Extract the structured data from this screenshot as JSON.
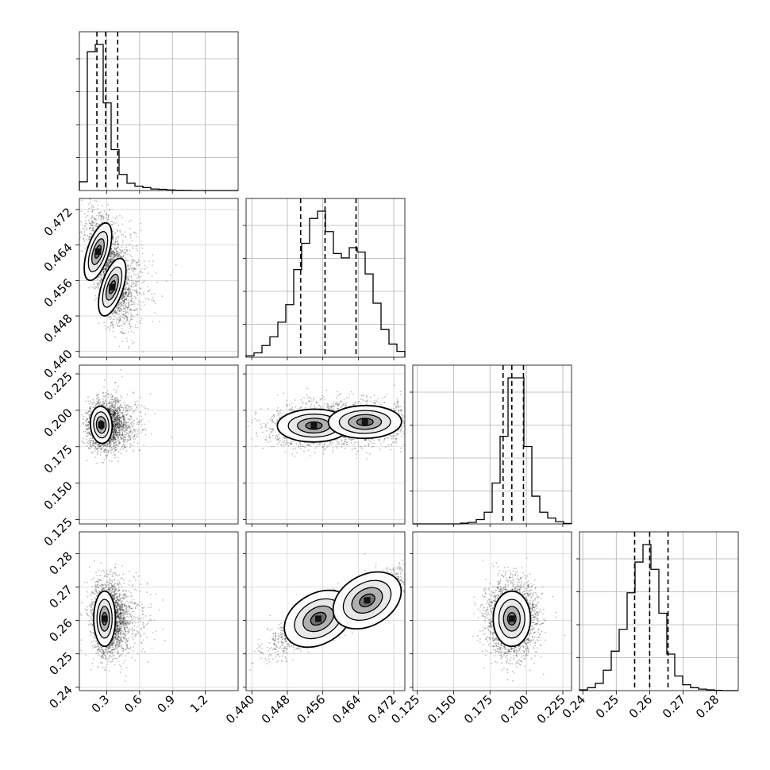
{
  "chart_data": {
    "type": "corner",
    "description_free": true,
    "params": [
      {
        "ticks": [
          "0.3",
          "0.6",
          "0.9",
          "1.2"
        ],
        "tick_values": [
          0.3,
          0.6,
          0.9,
          1.2
        ],
        "range": [
          0.05,
          1.5
        ],
        "center": 0.29,
        "quantiles": [
          0.21,
          0.29,
          0.4
        ]
      },
      {
        "ticks": [
          "0.440",
          "0.448",
          "0.456",
          "0.464",
          "0.472"
        ],
        "tick_values": [
          0.44,
          0.448,
          0.456,
          0.464,
          0.472
        ],
        "range": [
          0.4387,
          0.4745
        ],
        "center": 0.457,
        "quantiles": [
          0.451,
          0.4565,
          0.4635
        ]
      },
      {
        "ticks": [
          "0.125",
          "0.150",
          "0.175",
          "0.200",
          "0.225"
        ],
        "tick_values": [
          0.125,
          0.15,
          0.175,
          0.2,
          0.225
        ],
        "range": [
          0.122,
          0.231
        ],
        "center": 0.19,
        "quantiles": [
          0.184,
          0.19,
          0.198
        ]
      },
      {
        "ticks": [
          "0.24",
          "0.25",
          "0.26",
          "0.27",
          "0.28"
        ],
        "tick_values": [
          0.24,
          0.25,
          0.26,
          0.27,
          0.28
        ],
        "range": [
          0.239,
          0.2865
        ],
        "center": 0.26,
        "quantiles": [
          0.2555,
          0.26,
          0.2655
        ]
      }
    ],
    "histograms": [
      {
        "param": 0,
        "bin_edges_start": 0.05,
        "bin_width": 0.0725,
        "counts": [
          0.06,
          0.95,
          1.0,
          0.6,
          0.28,
          0.11,
          0.05,
          0.03,
          0.02,
          0.01,
          0.008,
          0.004,
          0.002,
          0.001,
          0,
          0,
          0,
          0,
          0,
          0
        ]
      },
      {
        "param": 1,
        "bin_edges_start": 0.4387,
        "bin_width": 0.00179,
        "counts": [
          0.01,
          0.03,
          0.08,
          0.14,
          0.24,
          0.36,
          0.6,
          0.78,
          0.95,
          1.0,
          0.86,
          0.71,
          0.68,
          0.75,
          0.72,
          0.57,
          0.37,
          0.19,
          0.09,
          0.04
        ]
      },
      {
        "param": 2,
        "bin_edges_start": 0.122,
        "bin_width": 0.00545,
        "counts": [
          0,
          0,
          0,
          0,
          0,
          0,
          0.005,
          0.01,
          0.03,
          0.08,
          0.28,
          0.6,
          1.0,
          1.0,
          0.53,
          0.19,
          0.08,
          0.04,
          0.015,
          0.003
        ]
      },
      {
        "param": 3,
        "bin_edges_start": 0.239,
        "bin_width": 0.002375,
        "counts": [
          0.005,
          0.02,
          0.05,
          0.14,
          0.27,
          0.42,
          0.67,
          0.88,
          1.0,
          0.83,
          0.53,
          0.25,
          0.1,
          0.04,
          0.02,
          0.01,
          0.005,
          0.002,
          0,
          0
        ]
      }
    ],
    "scatter_panels": [
      {
        "x_param": 0,
        "y_param": 1,
        "modes": [
          [
            0.22,
            0.4625
          ],
          [
            0.35,
            0.4545
          ]
        ]
      },
      {
        "x_param": 0,
        "y_param": 2,
        "modes": [
          [
            0.25,
            0.19
          ]
        ]
      },
      {
        "x_param": 1,
        "y_param": 2,
        "modes": [
          [
            0.454,
            0.1895
          ],
          [
            0.4655,
            0.192
          ]
        ]
      },
      {
        "x_param": 0,
        "y_param": 3,
        "modes": [
          [
            0.28,
            0.2605
          ]
        ]
      },
      {
        "x_param": 1,
        "y_param": 3,
        "modes": [
          [
            0.455,
            0.2605
          ],
          [
            0.466,
            0.266
          ]
        ]
      },
      {
        "x_param": 2,
        "y_param": 3,
        "modes": [
          [
            0.19,
            0.2605
          ]
        ]
      }
    ],
    "grid": true,
    "quantile_lines": "dashed"
  }
}
